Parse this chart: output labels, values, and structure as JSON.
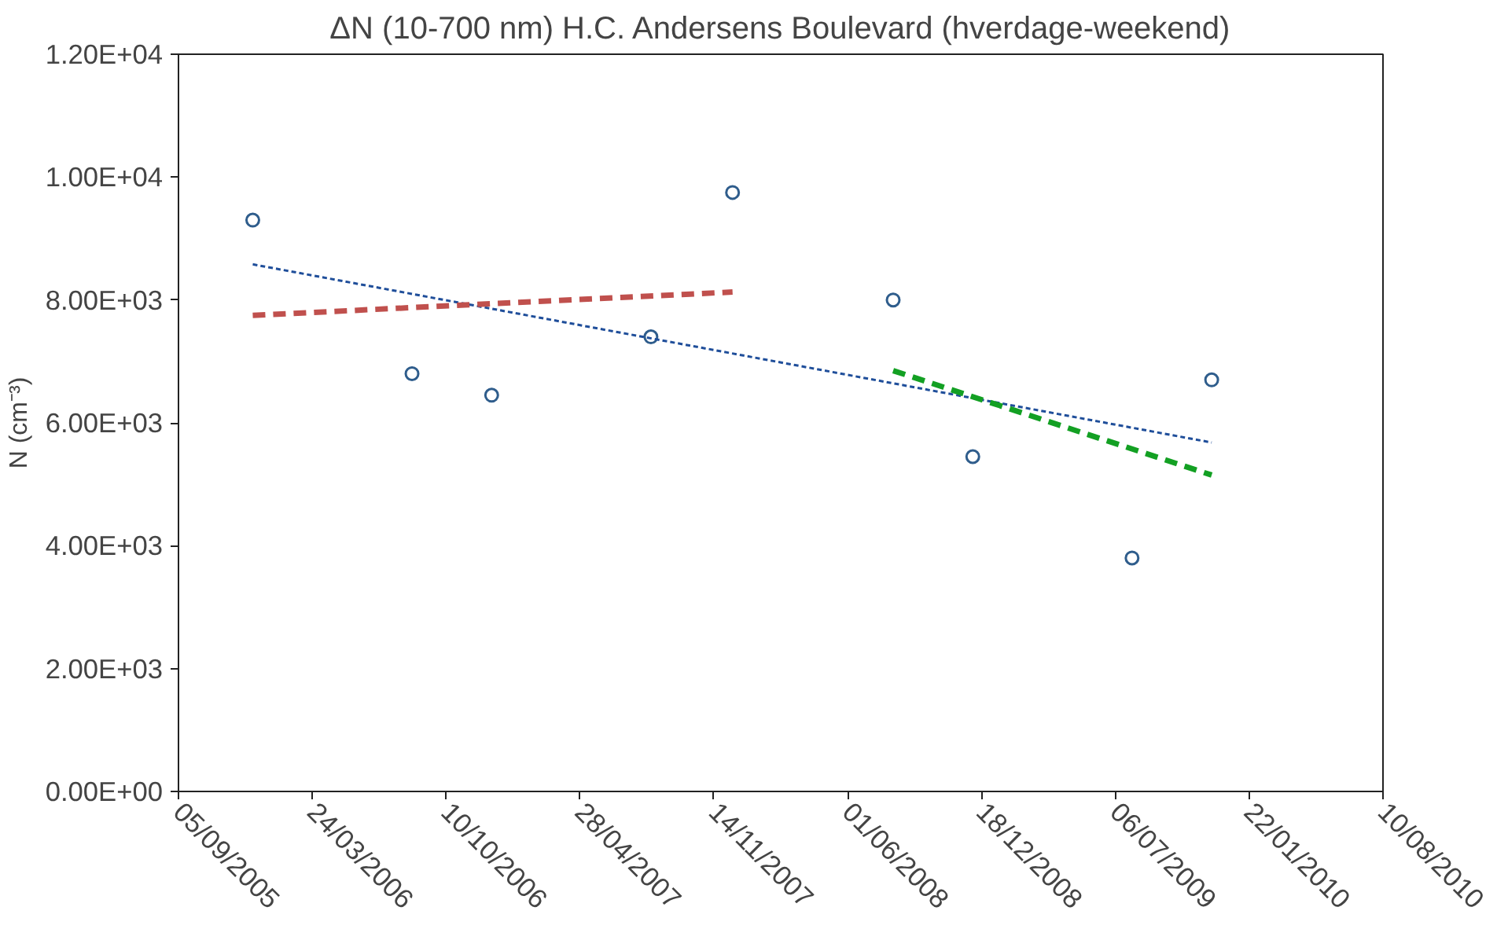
{
  "chart_data": {
    "type": "scatter",
    "title": "ΔN (10-700 nm) H.C. Andersens Boulevard (hverdage-weekend)",
    "ylabel": "N (cm⁻³)",
    "xlim": [
      "2005-09-05",
      "2010-08-10"
    ],
    "xticks": [
      {
        "value": "2005-09-05",
        "label": "05/09/2005"
      },
      {
        "value": "2006-03-24",
        "label": "24/03/2006"
      },
      {
        "value": "2006-10-10",
        "label": "10/10/2006"
      },
      {
        "value": "2007-04-28",
        "label": "28/04/2007"
      },
      {
        "value": "2007-11-14",
        "label": "14/11/2007"
      },
      {
        "value": "2008-06-01",
        "label": "01/06/2008"
      },
      {
        "value": "2008-12-18",
        "label": "18/12/2008"
      },
      {
        "value": "2009-07-06",
        "label": "06/07/2009"
      },
      {
        "value": "2010-01-22",
        "label": "22/01/2010"
      },
      {
        "value": "2010-08-10",
        "label": "10/08/2010"
      }
    ],
    "ylim": [
      0,
      12000
    ],
    "yticks": [
      {
        "value": 0,
        "label": "0.00E+00"
      },
      {
        "value": 2000,
        "label": "2.00E+03"
      },
      {
        "value": 4000,
        "label": "4.00E+03"
      },
      {
        "value": 6000,
        "label": "6.00E+03"
      },
      {
        "value": 8000,
        "label": "8.00E+03"
      },
      {
        "value": 10000,
        "label": "1.00E+04"
      },
      {
        "value": 12000,
        "label": "1.20E+04"
      }
    ],
    "grid": false,
    "series": [
      {
        "marker": "circle",
        "color": "#2f5d8c",
        "x": [
          "2005-12-25",
          "2006-08-20",
          "2006-12-17",
          "2007-08-12",
          "2007-12-12",
          "2008-08-08",
          "2008-12-05",
          "2009-07-31",
          "2009-11-27"
        ],
        "values": [
          9300,
          6800,
          6450,
          7400,
          9750,
          8000,
          5450,
          3800,
          6700
        ]
      },
      {
        "type": "line",
        "line_style": "dotted",
        "color": "#1f4e9a",
        "x": [
          "2005-12-25",
          "2009-11-27"
        ],
        "values": [
          8580,
          5680
        ]
      },
      {
        "type": "line",
        "line_style": "dashed",
        "color": "#c0504d",
        "x": [
          "2005-12-25",
          "2007-12-12"
        ],
        "values": [
          7750,
          8130
        ]
      },
      {
        "type": "line",
        "line_style": "dashed",
        "color": "#13a023",
        "x": [
          "2008-08-08",
          "2009-11-27"
        ],
        "values": [
          6850,
          5150
        ]
      }
    ]
  }
}
